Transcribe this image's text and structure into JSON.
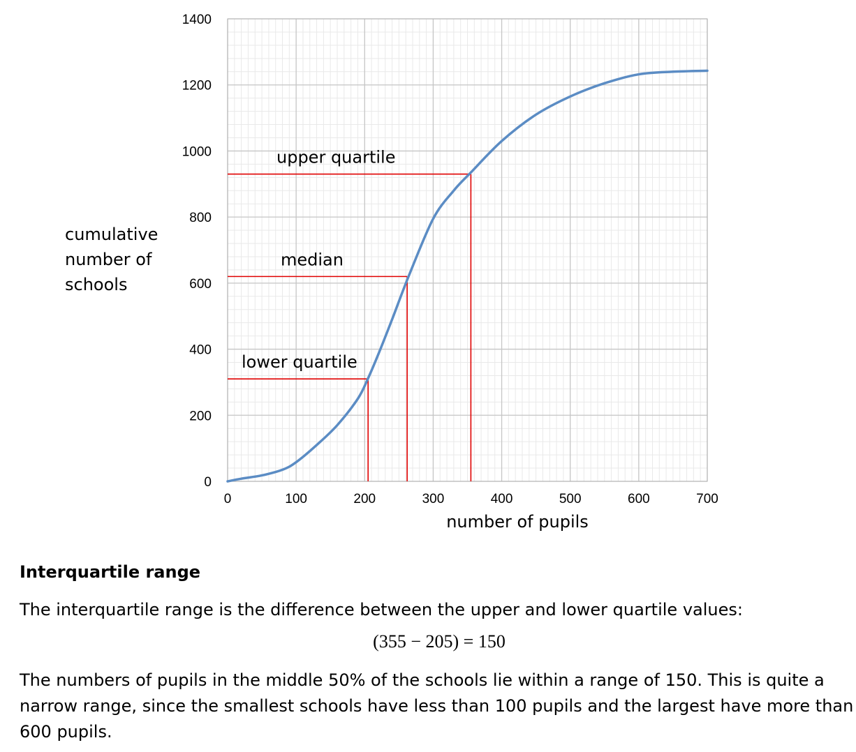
{
  "chart_data": {
    "type": "line",
    "xlabel": "number of pupils",
    "ylabel_lines": [
      "cumulative",
      "number of",
      "schools"
    ],
    "xlim": [
      0,
      700
    ],
    "ylim": [
      0,
      1400
    ],
    "x_ticks": [
      0,
      100,
      200,
      300,
      400,
      500,
      600,
      700
    ],
    "y_ticks": [
      0,
      200,
      400,
      600,
      800,
      1000,
      1200,
      1400
    ],
    "grid": true,
    "series": [
      {
        "color": "#5b8cc4",
        "x": [
          0,
          20,
          50,
          80,
          100,
          130,
          160,
          190,
          205,
          220,
          240,
          265,
          300,
          330,
          355,
          400,
          450,
          500,
          550,
          600,
          650,
          700
        ],
        "y": [
          0,
          8,
          18,
          35,
          58,
          110,
          170,
          250,
          312,
          385,
          490,
          625,
          795,
          880,
          935,
          1030,
          1110,
          1165,
          1205,
          1232,
          1240,
          1243
        ]
      }
    ],
    "reference_lines": [
      {
        "label": "lower quartile",
        "x": 205,
        "y": 310,
        "color": "#e00000"
      },
      {
        "label": "median",
        "x": 262,
        "y": 620,
        "color": "#e00000"
      },
      {
        "label": "upper quartile",
        "x": 355,
        "y": 930,
        "color": "#e00000"
      }
    ]
  },
  "explanation": {
    "heading": "Interquartile range",
    "intro": "The interquartile range is the difference between the upper and lower quartile values:",
    "formula": "(355 − 205) = 150",
    "conclusion_lines": [
      "The numbers of pupils in the middle 50% of the schools lie within a range of 150. This is quite a",
      "narrow range, since the smallest schools have less than 100 pupils and the largest have more than",
      "600 pupils."
    ]
  }
}
